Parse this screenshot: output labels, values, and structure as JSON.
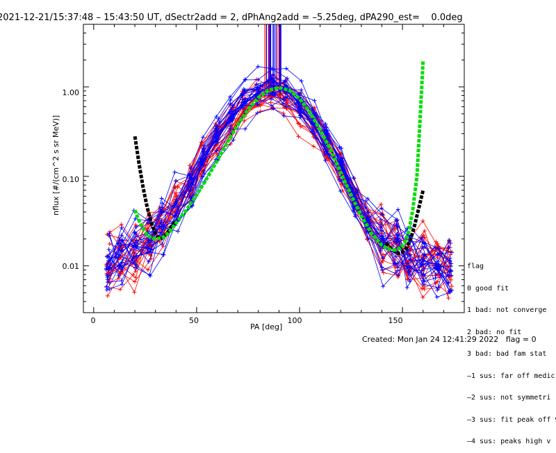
{
  "chart_data": {
    "type": "line",
    "title": "2021-12-21/15:37:48 – 15:43:50 UT, dSectr2add = 2, dPhAng2add = –5.25deg, dPA290_est=    0.0deg",
    "xlabel": "PA [deg]",
    "ylabel": "nflux [#/(cm^2 s sr MeV)]",
    "xlim": [
      -5,
      180
    ],
    "ylim": [
      0.003,
      5.0
    ],
    "yscale": "log",
    "x_ticks": [
      "0",
      "50",
      "100",
      "150"
    ],
    "y_ticks": [
      "1.00",
      "0.10",
      "0.01"
    ],
    "grid": false,
    "legend_placement": "right",
    "legend": {
      "title": "flag",
      "entries": [
        "0 good fit",
        "1 bad: not converge",
        "2 bad: no fit",
        "3 bad: bad fam stat",
        "–1 sus: far off medic",
        "–2 sus: not symmetri",
        "–3 sus: fit peak off 9",
        "–4 sus: peaks high v"
      ]
    },
    "series": [
      {
        "color": "#ff0000",
        "style": "thin lines with + markers",
        "x": [
          7,
          13,
          20,
          27,
          33,
          40,
          47,
          53,
          60,
          67,
          73,
          80,
          87,
          93,
          100,
          107,
          113,
          120,
          127,
          133,
          140,
          147,
          153,
          160,
          167,
          173
        ],
        "y": [
          0.011,
          0.013,
          0.016,
          0.02,
          0.03,
          0.05,
          0.09,
          0.16,
          0.28,
          0.45,
          0.65,
          0.85,
          0.92,
          0.85,
          0.62,
          0.4,
          0.24,
          0.13,
          0.06,
          0.033,
          0.02,
          0.015,
          0.013,
          0.012,
          0.011,
          0.01
        ]
      },
      {
        "color": "#0000ff",
        "style": "thin lines with + markers",
        "x": [
          7,
          13,
          20,
          27,
          33,
          40,
          47,
          53,
          60,
          67,
          73,
          80,
          87,
          93,
          100,
          107,
          113,
          120,
          127,
          133,
          140,
          147,
          153,
          160,
          167,
          173
        ],
        "y": [
          0.01,
          0.012,
          0.015,
          0.018,
          0.025,
          0.04,
          0.08,
          0.15,
          0.27,
          0.46,
          0.7,
          0.9,
          1.0,
          0.9,
          0.65,
          0.42,
          0.25,
          0.12,
          0.055,
          0.03,
          0.018,
          0.014,
          0.012,
          0.011,
          0.01,
          0.009
        ]
      },
      {
        "color": "#000000",
        "style": "thick dashed",
        "x": [
          20,
          22,
          24,
          26,
          28,
          30,
          32,
          34,
          36,
          38,
          40,
          142,
          144,
          146,
          148,
          150,
          152,
          154,
          156,
          158,
          160
        ],
        "y": [
          0.28,
          0.14,
          0.075,
          0.045,
          0.03,
          0.023,
          0.02,
          0.021,
          0.024,
          0.028,
          0.032,
          0.018,
          0.016,
          0.0145,
          0.0138,
          0.0142,
          0.016,
          0.02,
          0.029,
          0.045,
          0.07
        ]
      },
      {
        "color": "#00e000",
        "style": "thick dashed",
        "x": [
          20,
          22,
          24,
          26,
          28,
          30,
          32,
          34,
          36,
          38,
          40,
          45,
          50,
          55,
          60,
          65,
          70,
          75,
          80,
          85,
          90,
          95,
          100,
          105,
          110,
          115,
          120,
          125,
          130,
          135,
          140,
          143,
          146,
          149,
          151,
          153,
          155,
          157,
          158,
          159,
          160
        ],
        "y": [
          0.042,
          0.032,
          0.026,
          0.022,
          0.0205,
          0.02,
          0.0203,
          0.021,
          0.023,
          0.026,
          0.03,
          0.042,
          0.062,
          0.095,
          0.15,
          0.24,
          0.38,
          0.56,
          0.76,
          0.92,
          0.98,
          0.92,
          0.74,
          0.52,
          0.33,
          0.2,
          0.11,
          0.062,
          0.036,
          0.023,
          0.017,
          0.0155,
          0.015,
          0.0158,
          0.018,
          0.024,
          0.042,
          0.1,
          0.25,
          0.7,
          2.0
        ]
      }
    ]
  },
  "footer": {
    "created": "Created: Mon Jan 24 12:41:29 2022   flag = 0"
  }
}
